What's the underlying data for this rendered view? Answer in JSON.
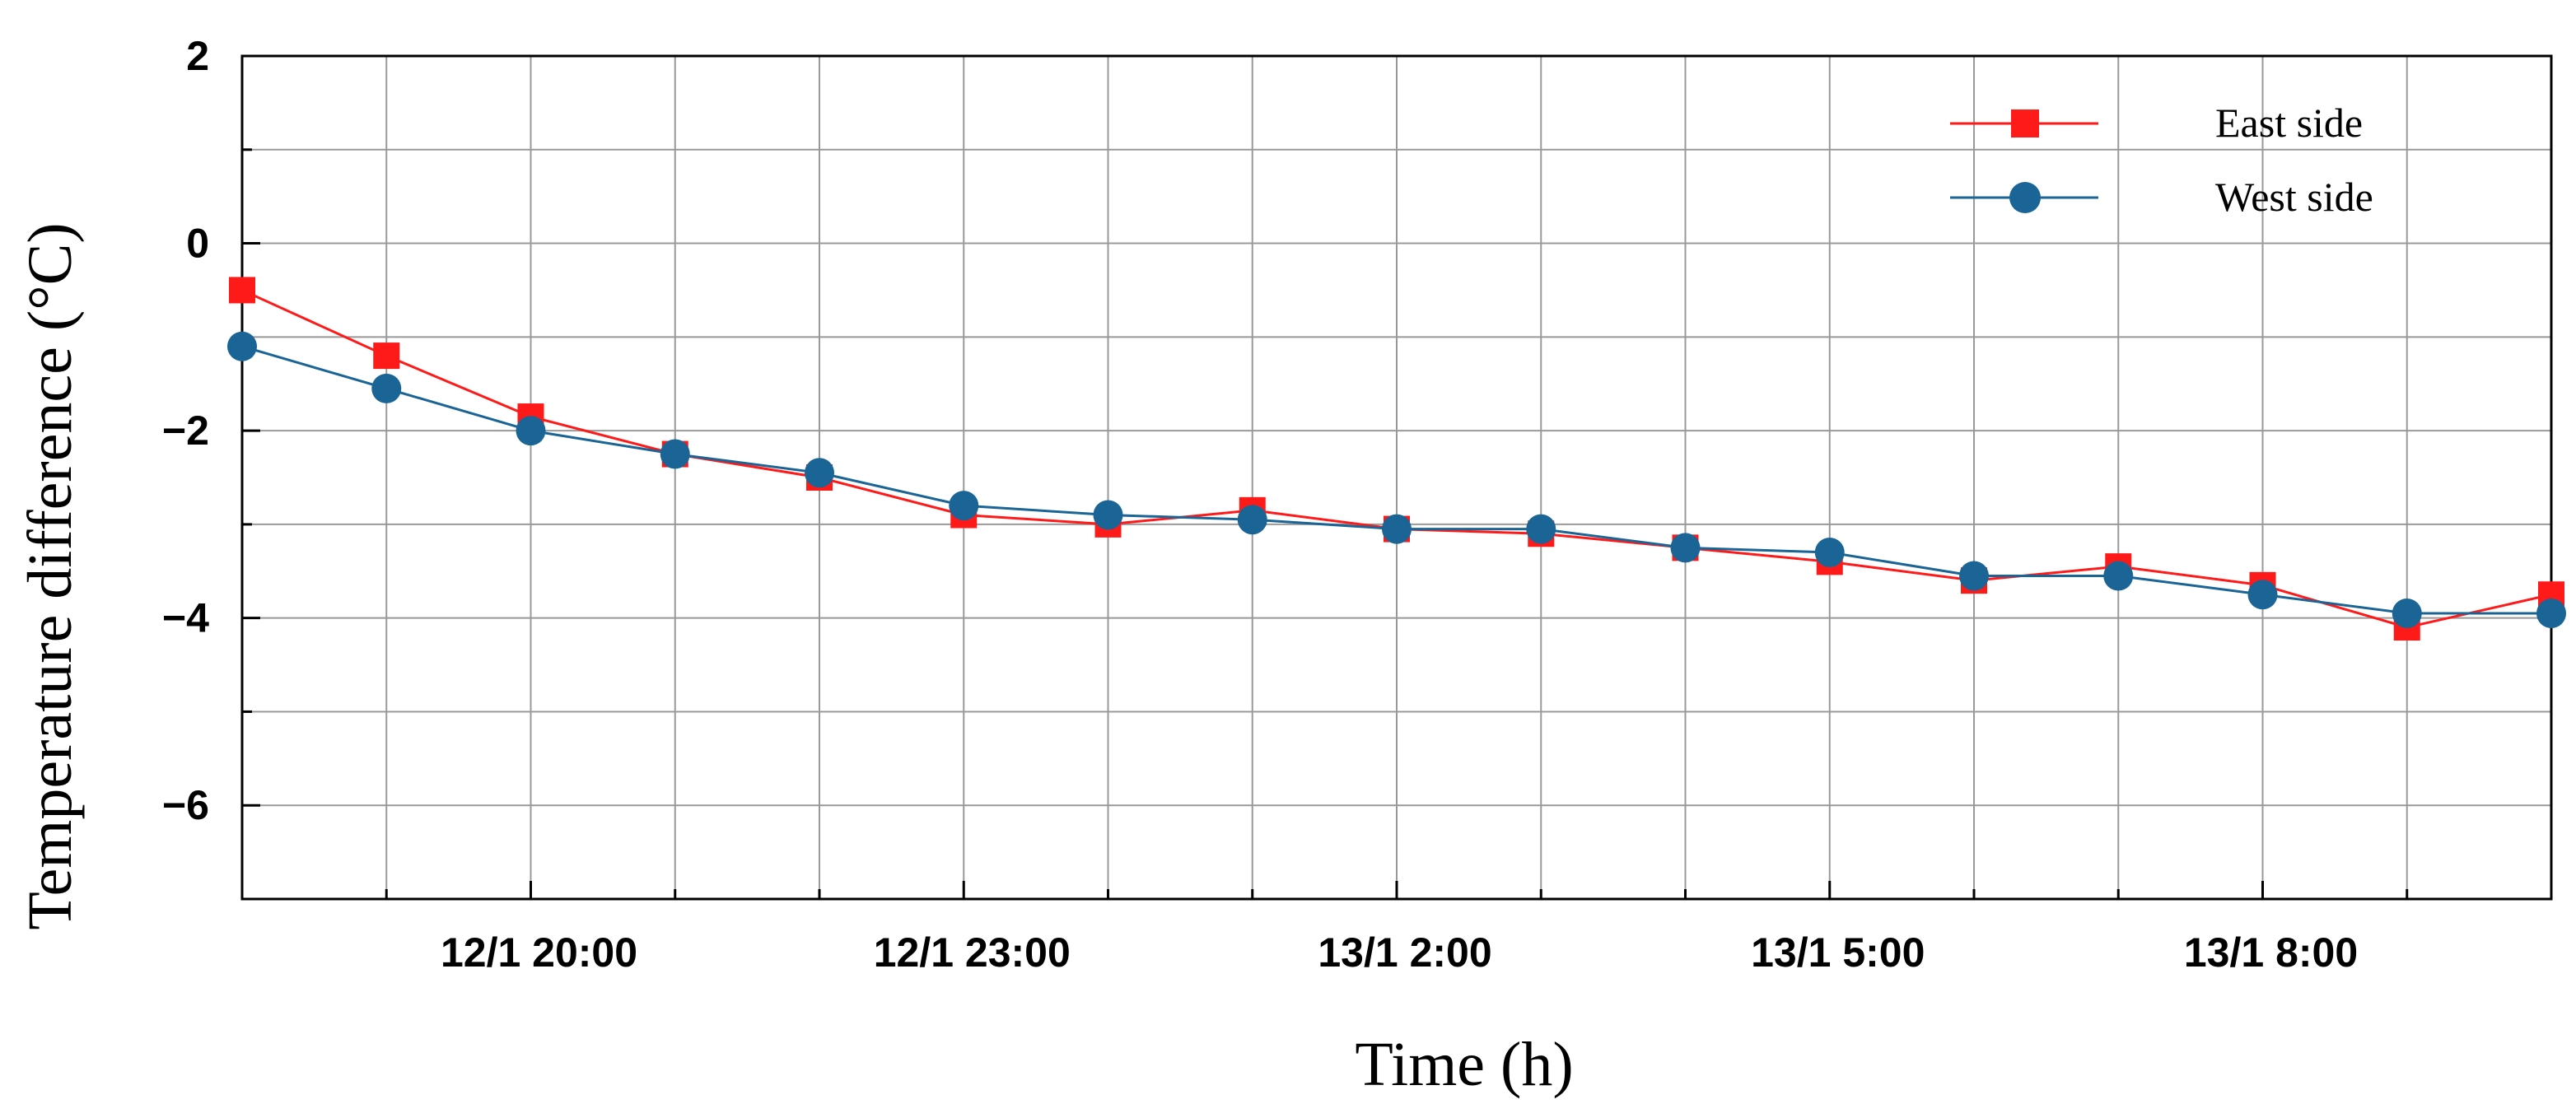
{
  "chart_data": {
    "type": "line",
    "title": "",
    "xlabel": "Time (h)",
    "ylabel": "Temperature difference (°C)",
    "x": [
      "12/1 18:00",
      "12/1 19:00",
      "12/1 20:00",
      "12/1 21:00",
      "12/1 22:00",
      "12/1 23:00",
      "13/1 0:00",
      "13/1 1:00",
      "13/1 2:00",
      "13/1 3:00",
      "13/1 4:00",
      "13/1 5:00",
      "13/1 6:00",
      "13/1 7:00",
      "13/1 8:00",
      "13/1 9:00",
      "13/1 10:00"
    ],
    "x_tick_labels": [
      "12/1 20:00",
      "12/1 23:00",
      "13/1 2:00",
      "13/1 5:00",
      "13/1 8:00"
    ],
    "y_ticks": [
      "2",
      "0",
      "−2",
      "−4",
      "−6"
    ],
    "ylim": [
      -7,
      2
    ],
    "grid": true,
    "legend_position": "top-right",
    "series": [
      {
        "name": "East side",
        "color": "#ff1a1a",
        "marker": "square",
        "values": [
          -0.5,
          -1.2,
          -1.85,
          -2.25,
          -2.5,
          -2.9,
          -3.0,
          -2.85,
          -3.05,
          -3.1,
          -3.25,
          -3.4,
          -3.6,
          -3.45,
          -3.65,
          -4.1,
          -3.75
        ]
      },
      {
        "name": "West side",
        "color": "#1a6496",
        "marker": "circle",
        "values": [
          -1.1,
          -1.55,
          -2.0,
          -2.25,
          -2.45,
          -2.8,
          -2.9,
          -2.95,
          -3.05,
          -3.05,
          -3.25,
          -3.3,
          -3.55,
          -3.55,
          -3.75,
          -3.95,
          -3.95
        ]
      }
    ]
  }
}
